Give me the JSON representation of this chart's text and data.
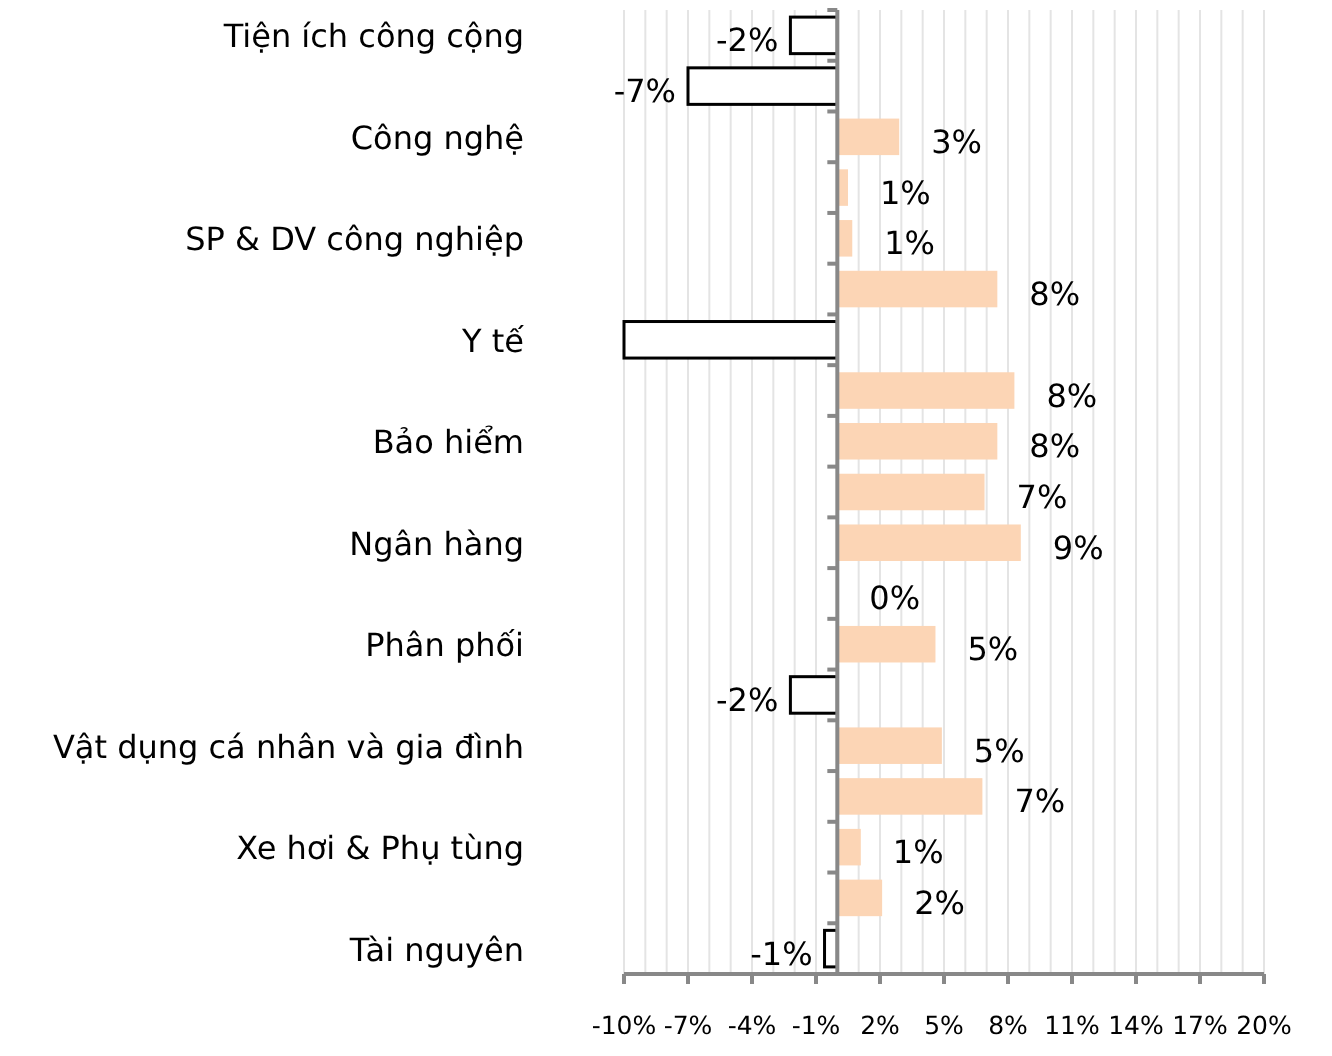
{
  "chart_data": {
    "type": "bar",
    "orientation": "horizontal",
    "categories": [
      "Tiện ích công cộng",
      null,
      "Công nghệ",
      null,
      "SP & DV công nghiệp",
      null,
      "Y tế",
      null,
      "Bảo hiểm",
      null,
      "Ngân hàng",
      null,
      "Phân phối",
      null,
      "Vật dụng cá nhân và gia đình",
      null,
      "Xe hơi & Phụ tùng",
      null,
      "Tài nguyên"
    ],
    "values": [
      -2.2,
      -7.0,
      2.9,
      0.5,
      0.7,
      7.5,
      -10.0,
      8.3,
      7.5,
      6.9,
      8.6,
      0.0,
      4.6,
      -2.2,
      4.9,
      6.8,
      1.1,
      2.1,
      -0.6
    ],
    "value_labels": [
      "-2%",
      "-7%",
      "3%",
      "1%",
      "1%",
      "8%",
      null,
      "8%",
      "8%",
      "7%",
      "9%",
      "0%",
      "5%",
      "-2%",
      "5%",
      "7%",
      "1%",
      "2%",
      "-1%"
    ],
    "colors": [
      "#ffffff",
      "#ffffff",
      "#fcd5b5",
      "#fcd5b5",
      "#fcd5b5",
      "#fcd5b5",
      "#ffffff",
      "#fcd5b5",
      "#fcd5b5",
      "#fcd5b5",
      "#fcd5b5",
      "#fcd5b5",
      "#fcd5b5",
      "#ffffff",
      "#fcd5b5",
      "#fcd5b5",
      "#fcd5b5",
      "#fcd5b5",
      "#ffffff"
    ],
    "xlim": [
      -10,
      20
    ],
    "xticks": [
      {
        "value": -10,
        "label": "-10%"
      },
      {
        "value": -9,
        "label": null
      },
      {
        "value": -8,
        "label": null
      },
      {
        "value": -7,
        "label": "-7%"
      },
      {
        "value": -6,
        "label": null
      },
      {
        "value": -5,
        "label": null
      },
      {
        "value": -4,
        "label": "-4%"
      },
      {
        "value": -3,
        "label": null
      },
      {
        "value": -2,
        "label": null
      },
      {
        "value": -1,
        "label": "-1%"
      },
      {
        "value": 0,
        "label": null
      },
      {
        "value": 1,
        "label": null
      },
      {
        "value": 2,
        "label": "2%"
      },
      {
        "value": 3,
        "label": null
      },
      {
        "value": 4,
        "label": null
      },
      {
        "value": 5,
        "label": "5%"
      },
      {
        "value": 6,
        "label": null
      },
      {
        "value": 7,
        "label": null
      },
      {
        "value": 8,
        "label": "8%"
      },
      {
        "value": 9,
        "label": null
      },
      {
        "value": 10,
        "label": null
      },
      {
        "value": 11,
        "label": "11%"
      },
      {
        "value": 12,
        "label": null
      },
      {
        "value": 13,
        "label": null
      },
      {
        "value": 14,
        "label": "14%"
      },
      {
        "value": 15,
        "label": null
      },
      {
        "value": 16,
        "label": null
      },
      {
        "value": 17,
        "label": "17%"
      },
      {
        "value": 18,
        "label": null
      },
      {
        "value": 19,
        "label": null
      },
      {
        "value": 20,
        "label": "20%"
      }
    ],
    "grid": "x"
  }
}
